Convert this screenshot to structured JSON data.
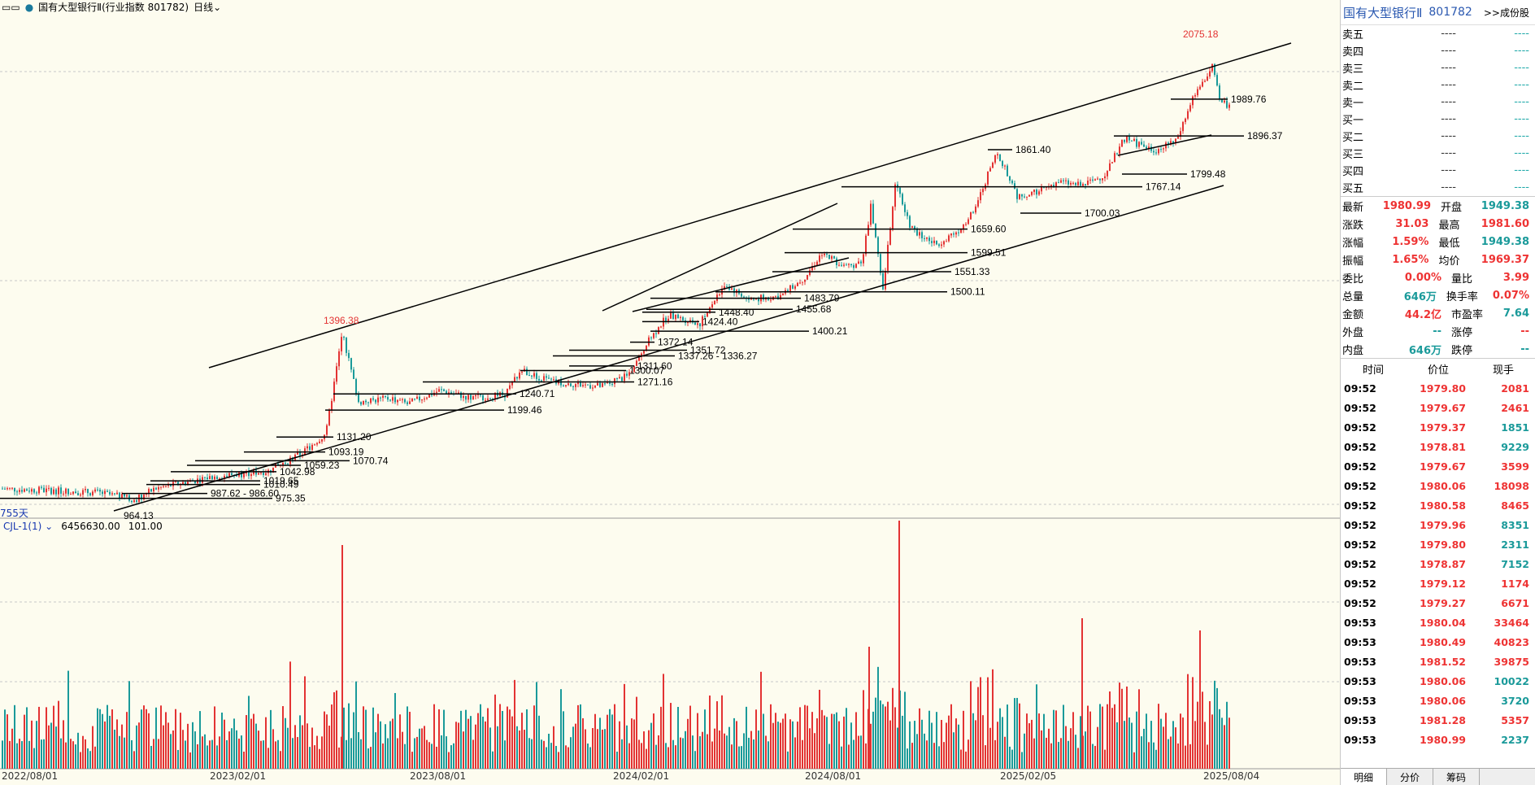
{
  "header": {
    "title": "国有大型银行Ⅱ(行业指数 801782)",
    "period": "日线"
  },
  "volume_indicator": {
    "name": "CJL-1(1)",
    "value1": "6456630.00",
    "value2": "101.00"
  },
  "days_label": "755天",
  "x_axis_labels": [
    "2022/08/01",
    "2023/02/01",
    "2023/08/01",
    "2024/02/01",
    "2024/08/01",
    "2025/02/05",
    "2025/08/04"
  ],
  "annotations": {
    "peak": "2075.18",
    "peak_mid": "1396.38",
    "levels": [
      "1989.76",
      "1896.37",
      "1861.40",
      "1799.48",
      "1767.14",
      "1700.03",
      "1659.60",
      "1599.51",
      "1551.33",
      "1500.11",
      "1483.79",
      "1455.68",
      "1448.40",
      "1424.40",
      "1400.21",
      "1372.14",
      "1351.72",
      "1337.26 - 1336.27",
      "1311.60",
      "1300.07",
      "1271.16",
      "1240.71",
      "1199.46",
      "1131.20",
      "1093.19",
      "1070.74",
      "1059.23",
      "1042.98",
      "1019.65",
      "1010.49",
      "987.62 - 986.60",
      "975.35",
      "964.13"
    ]
  },
  "panel": {
    "name": "国有大型银行Ⅱ",
    "code": "801782",
    "link": ">>成份股",
    "order_book": [
      {
        "label": "卖五",
        "price": "----",
        "vol": "----"
      },
      {
        "label": "卖四",
        "price": "----",
        "vol": "----"
      },
      {
        "label": "卖三",
        "price": "----",
        "vol": "----"
      },
      {
        "label": "卖二",
        "price": "----",
        "vol": "----"
      },
      {
        "label": "卖一",
        "price": "----",
        "vol": "----"
      },
      {
        "label": "买一",
        "price": "----",
        "vol": "----"
      },
      {
        "label": "买二",
        "price": "----",
        "vol": "----"
      },
      {
        "label": "买三",
        "price": "----",
        "vol": "----"
      },
      {
        "label": "买四",
        "price": "----",
        "vol": "----"
      },
      {
        "label": "买五",
        "price": "----",
        "vol": "----"
      }
    ],
    "stats": [
      {
        "k": "最新",
        "v": "1980.99",
        "vc": "red",
        "k2": "开盘",
        "v2": "1949.38",
        "v2c": "cyan"
      },
      {
        "k": "涨跌",
        "v": "31.03",
        "vc": "red",
        "k2": "最高",
        "v2": "1981.60",
        "v2c": "red"
      },
      {
        "k": "涨幅",
        "v": "1.59%",
        "vc": "red",
        "k2": "最低",
        "v2": "1949.38",
        "v2c": "cyan"
      },
      {
        "k": "振幅",
        "v": "1.65%",
        "vc": "red",
        "k2": "均价",
        "v2": "1969.37",
        "v2c": "red"
      },
      {
        "k": "委比",
        "v": "0.00%",
        "vc": "red",
        "k2": "量比",
        "v2": "3.99",
        "v2c": "red"
      },
      {
        "k": "总量",
        "v": "646万",
        "vc": "cyan",
        "k2": "换手率",
        "v2": "0.07%",
        "v2c": "red"
      },
      {
        "k": "金额",
        "v": "44.2亿",
        "vc": "red",
        "k2": "市盈率",
        "v2": "7.64",
        "v2c": "cyan"
      },
      {
        "k": "外盘",
        "v": "--",
        "vc": "cyan",
        "k2": "涨停",
        "v2": "--",
        "v2c": "red"
      },
      {
        "k": "内盘",
        "v": "646万",
        "vc": "cyan",
        "k2": "跌停",
        "v2": "--",
        "v2c": "cyan"
      }
    ],
    "tick_header": {
      "time": "时间",
      "price": "价位",
      "vol": "现手"
    },
    "ticks": [
      {
        "t": "09:52",
        "p": "1979.80",
        "v": "2081",
        "vc": "red"
      },
      {
        "t": "09:52",
        "p": "1979.67",
        "v": "2461",
        "vc": "red"
      },
      {
        "t": "09:52",
        "p": "1979.37",
        "v": "1851",
        "vc": "cyan"
      },
      {
        "t": "09:52",
        "p": "1978.81",
        "v": "9229",
        "vc": "cyan"
      },
      {
        "t": "09:52",
        "p": "1979.67",
        "v": "3599",
        "vc": "red"
      },
      {
        "t": "09:52",
        "p": "1980.06",
        "v": "18098",
        "vc": "red"
      },
      {
        "t": "09:52",
        "p": "1980.58",
        "v": "8465",
        "vc": "red"
      },
      {
        "t": "09:52",
        "p": "1979.96",
        "v": "8351",
        "vc": "cyan"
      },
      {
        "t": "09:52",
        "p": "1979.80",
        "v": "2311",
        "vc": "cyan"
      },
      {
        "t": "09:52",
        "p": "1978.87",
        "v": "7152",
        "vc": "cyan"
      },
      {
        "t": "09:52",
        "p": "1979.12",
        "v": "1174",
        "vc": "red"
      },
      {
        "t": "09:52",
        "p": "1979.27",
        "v": "6671",
        "vc": "red"
      },
      {
        "t": "09:53",
        "p": "1980.04",
        "v": "33464",
        "vc": "red"
      },
      {
        "t": "09:53",
        "p": "1980.49",
        "v": "40823",
        "vc": "red"
      },
      {
        "t": "09:53",
        "p": "1981.52",
        "v": "39875",
        "vc": "red"
      },
      {
        "t": "09:53",
        "p": "1980.06",
        "v": "10022",
        "vc": "cyan"
      },
      {
        "t": "09:53",
        "p": "1980.06",
        "v": "3720",
        "vc": "cyan"
      },
      {
        "t": "09:53",
        "p": "1981.28",
        "v": "5357",
        "vc": "red"
      },
      {
        "t": "09:53",
        "p": "1980.99",
        "v": "2237",
        "vc": "cyan"
      }
    ],
    "tabs": [
      "明细",
      "分价",
      "筹码"
    ]
  },
  "colors": {
    "up": "#e33333",
    "down": "#1a9a9a",
    "bg": "#fdfcef"
  }
}
